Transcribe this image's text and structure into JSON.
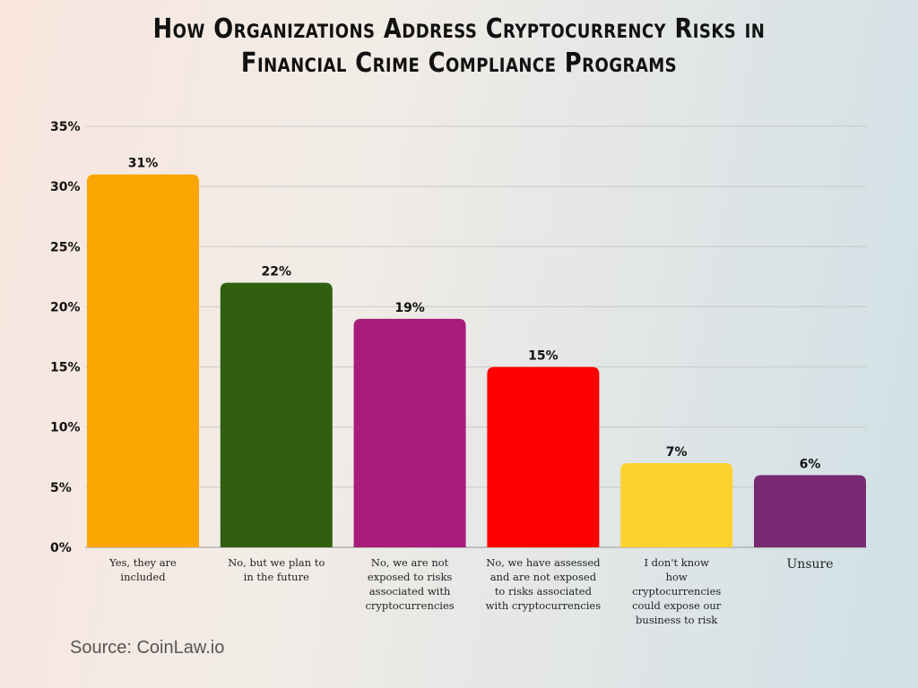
{
  "chart_data": {
    "type": "bar",
    "title": [
      "How Organizations Address Cryptocurrency Risks in",
      "Financial Crime Compliance Programs"
    ],
    "categories": [
      "Yes, they are included",
      "No, but we plan to in the future",
      "No, we are not exposed to risks associated with cryptocurrencies",
      "No, we have assessed and are not exposed to risks associated with cryptocurrencies",
      "I don't know how cryptocurrencies could expose our business to risk",
      "Unsure"
    ],
    "values": [
      31,
      22,
      19,
      15,
      7,
      6
    ],
    "data_labels": [
      "31%",
      "22%",
      "19%",
      "15%",
      "7%",
      "6%"
    ],
    "colors": [
      "#F9A602",
      "#2F5F0F",
      "#A81C7C",
      "#FF0000",
      "#FDD22F",
      "#772A72"
    ],
    "xlabel": "",
    "ylabel": "",
    "ylim": [
      0,
      35
    ],
    "yticks": [
      0,
      5,
      10,
      15,
      20,
      25,
      30,
      35
    ],
    "ytick_labels": [
      "0%",
      "5%",
      "10%",
      "15%",
      "20%",
      "25%",
      "30%",
      "35%"
    ],
    "grid": true,
    "legend": "none"
  },
  "source": "Source: CoinLaw.io"
}
